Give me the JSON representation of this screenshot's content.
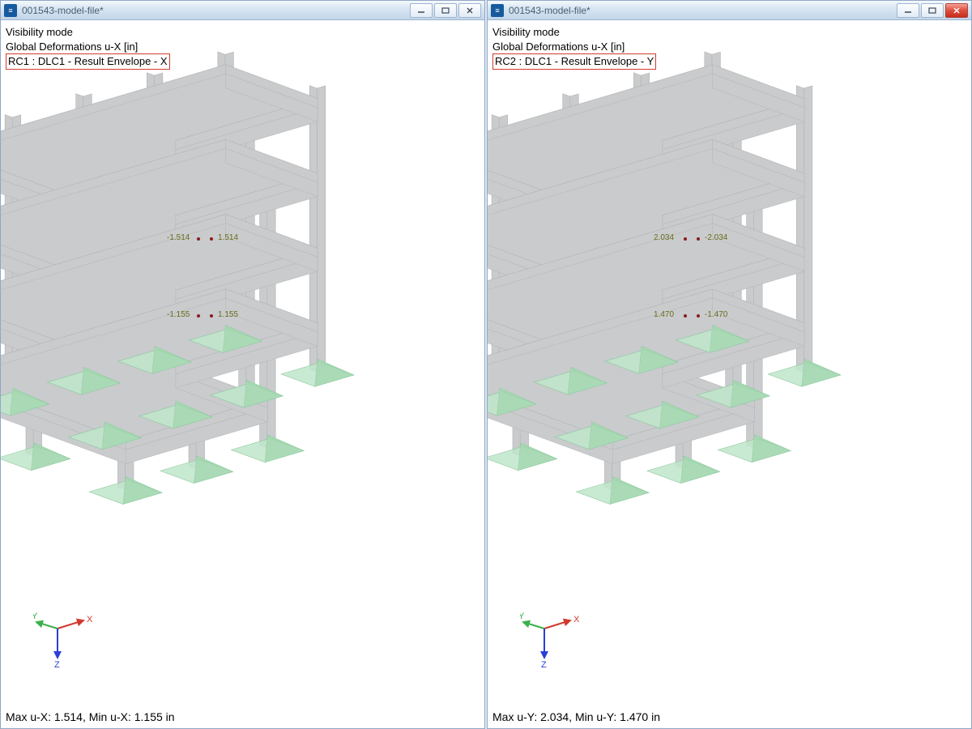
{
  "colors": {
    "background": "#ffffff",
    "model_fill": "#c9cbcd",
    "model_stroke": "#b2b4b6",
    "support_fill": "#a6d9b3",
    "support_stroke": "#8cc79c",
    "highlight_border": "#d23b2f",
    "text": "#000000",
    "data_label": "#6b6b1a",
    "data_dot": "#8a1c1c",
    "x_axis": "#d13a2d",
    "y_axis": "#3ab14a",
    "z_axis": "#2a3fd6",
    "titlebar_text": "#4a6075"
  },
  "left_panel": {
    "title": "001543-model-file*",
    "visibility_line": "Visibility mode",
    "deform_line": "Global Deformations u-X [in]",
    "result_line": "RC1 : DLC1 - Result Envelope - X",
    "status_line": "Max u-X: 1.514, Min u-X: 1.155 in",
    "labels": {
      "top_neg": "-1.514",
      "top_pos": "1.514",
      "mid_neg": "-1.155",
      "mid_pos": "1.155"
    },
    "close_active": false
  },
  "right_panel": {
    "title": "001543-model-file*",
    "visibility_line": "Visibility mode",
    "deform_line": "Global Deformations u-X [in]",
    "result_line": "RC2 : DLC1 - Result Envelope - Y",
    "status_line": "Max u-Y: 2.034, Min u-Y: 1.470 in",
    "labels": {
      "top_neg": "-2.034",
      "top_pos": "2.034",
      "mid_neg": "-1.470",
      "mid_pos": "1.470"
    },
    "close_active": true
  },
  "axes": {
    "x": "X",
    "y": "Y",
    "z": "Z"
  },
  "typography": {
    "info_fontsize": 13,
    "label_fontsize": 10,
    "status_fontsize": 14
  },
  "model": {
    "description": "L-shaped 4-storey frame, isometric view",
    "floors": 4,
    "columns_per_floor": 12,
    "support_type": "fixed-pad"
  }
}
